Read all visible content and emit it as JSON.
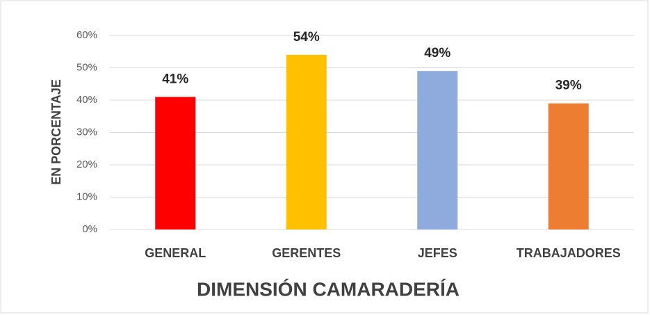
{
  "chart_data": {
    "type": "bar",
    "x_label": "DIMENSIÓN CAMARADERÍA",
    "y_label": "EN PORCENTAJE",
    "categories": [
      "GENERAL",
      "GERENTES",
      "JEFES",
      "TRABAJADORES"
    ],
    "values": [
      41,
      54,
      49,
      39
    ],
    "value_labels": [
      "41%",
      "54%",
      "49%",
      "39%"
    ],
    "colors": [
      "#ff0000",
      "#ffc000",
      "#8faadc",
      "#ed7d31"
    ],
    "ylim": [
      0,
      60
    ],
    "yticks": [
      {
        "value": 0,
        "label": "0%"
      },
      {
        "value": 10,
        "label": "10%"
      },
      {
        "value": 20,
        "label": "20%"
      },
      {
        "value": 30,
        "label": "30%"
      },
      {
        "value": 40,
        "label": "40%"
      },
      {
        "value": 50,
        "label": "50%"
      },
      {
        "value": 60,
        "label": "60%"
      }
    ],
    "grid": true
  }
}
